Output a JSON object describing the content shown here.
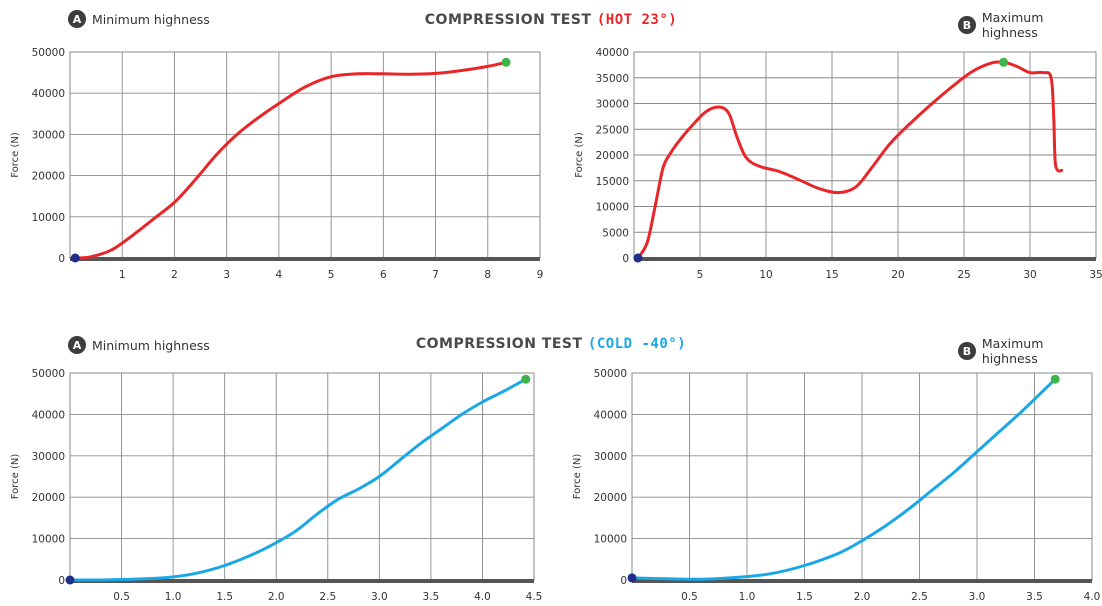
{
  "rows": [
    {
      "title_prefix": "COMPRESSION TEST",
      "title_highlight": "(HOT 23°)",
      "highlight_color": "#e8262a"
    },
    {
      "title_prefix": "COMPRESSION TEST",
      "title_highlight": "(COLD -40°)",
      "highlight_color": "#1aa7e6"
    }
  ],
  "badges": [
    {
      "letter": "A",
      "text": "Minimum highness"
    },
    {
      "letter": "B",
      "text": "Maximum highness"
    },
    {
      "letter": "A",
      "text": "Minimum highness"
    },
    {
      "letter": "B",
      "text": "Maximum highness"
    }
  ],
  "colors": {
    "start_marker": "#1f2e8a",
    "end_marker": "#3cb54a",
    "grid": "#8a8a8a",
    "axis": "#555555"
  },
  "chart_data": [
    {
      "type": "line",
      "color": "#e8262a",
      "ylabel": "Force (N)",
      "xlim": [
        0,
        9
      ],
      "ylim": [
        0,
        50000
      ],
      "xticks": [
        1,
        2,
        3,
        4,
        5,
        6,
        7,
        8,
        9
      ],
      "xtick_labels": [
        "1",
        "2",
        "3",
        "4",
        "5",
        "6",
        "7",
        "8",
        "9"
      ],
      "yticks": [
        0,
        10000,
        20000,
        30000,
        40000,
        50000
      ],
      "ytick_labels": [
        "0",
        "10000",
        "20000",
        "30000",
        "40000",
        "50000"
      ],
      "grid": true,
      "x": [
        0.1,
        0.4,
        0.8,
        1.2,
        1.6,
        2.0,
        2.4,
        2.8,
        3.2,
        3.6,
        4.0,
        4.5,
        5.0,
        5.5,
        6.0,
        6.5,
        7.0,
        7.5,
        8.0,
        8.35
      ],
      "y": [
        0,
        300,
        2000,
        5500,
        9500,
        13500,
        19000,
        25000,
        30000,
        34000,
        37500,
        41500,
        44000,
        44700,
        44700,
        44600,
        44800,
        45500,
        46500,
        47500
      ]
    },
    {
      "type": "line",
      "color": "#e8262a",
      "ylabel": "Force (N)",
      "xlim": [
        0,
        35
      ],
      "ylim": [
        0,
        40000
      ],
      "xticks": [
        5,
        10,
        15,
        20,
        25,
        30,
        35
      ],
      "xtick_labels": [
        "5",
        "10",
        "15",
        "20",
        "25",
        "30",
        "35"
      ],
      "yticks": [
        0,
        5000,
        10000,
        15000,
        20000,
        25000,
        30000,
        35000,
        40000
      ],
      "ytick_labels": [
        "0",
        "5000",
        "10000",
        "15000",
        "20000",
        "25000",
        "30000",
        "35000",
        "40000"
      ],
      "grid": true,
      "x": [
        0.3,
        1.0,
        1.6,
        2.2,
        2.8,
        3.5,
        4.5,
        5.5,
        6.5,
        7.2,
        7.8,
        8.5,
        9.5,
        11.0,
        12.5,
        14.0,
        15.5,
        16.8,
        18.0,
        19.5,
        21.5,
        23.5,
        25.5,
        27.0,
        28.0,
        29.0,
        30.0,
        31.0,
        31.6,
        31.8,
        31.9,
        32.1,
        32.4
      ],
      "y": [
        0,
        3000,
        10000,
        17500,
        20500,
        23000,
        26000,
        28500,
        29300,
        28000,
        23500,
        19500,
        17800,
        16800,
        15200,
        13500,
        12700,
        13800,
        17500,
        22500,
        27500,
        32000,
        36000,
        37800,
        38000,
        37200,
        36000,
        36000,
        35000,
        27000,
        19000,
        17000,
        17000
      ]
    },
    {
      "type": "line",
      "color": "#1aa7e6",
      "ylabel": "Force (N)",
      "xlim": [
        0,
        4.5
      ],
      "ylim": [
        0,
        50000
      ],
      "xticks": [
        0.5,
        1.0,
        1.5,
        2.0,
        2.5,
        3.0,
        3.5,
        4.0,
        4.5
      ],
      "xtick_labels": [
        "0.5",
        "1.0",
        "1.5",
        "2.0",
        "2.5",
        "3.0",
        "3.5",
        "4.0",
        "4.5"
      ],
      "yticks": [
        0,
        10000,
        20000,
        30000,
        40000,
        50000
      ],
      "ytick_labels": [
        "0",
        "10000",
        "20000",
        "30000",
        "40000",
        "50000"
      ],
      "grid": true,
      "x": [
        0.0,
        0.3,
        0.6,
        0.9,
        1.2,
        1.5,
        1.8,
        2.0,
        2.2,
        2.4,
        2.6,
        2.8,
        3.0,
        3.2,
        3.4,
        3.6,
        3.8,
        4.0,
        4.2,
        4.42
      ],
      "y": [
        0,
        0,
        200,
        500,
        1500,
        3500,
        6500,
        9000,
        12000,
        16000,
        19500,
        22000,
        25000,
        29000,
        33000,
        36500,
        40000,
        43000,
        45500,
        48500
      ]
    },
    {
      "type": "line",
      "color": "#1aa7e6",
      "ylabel": "Force (N)",
      "xlim": [
        0,
        4.0
      ],
      "ylim": [
        0,
        50000
      ],
      "xticks": [
        0.5,
        1.0,
        1.5,
        2.0,
        2.5,
        3.0,
        3.5,
        4.0
      ],
      "xtick_labels": [
        "0.5",
        "1.0",
        "1.5",
        "2.0",
        "2.5",
        "3.0",
        "3.5",
        "4.0"
      ],
      "yticks": [
        0,
        10000,
        20000,
        30000,
        40000,
        50000
      ],
      "ytick_labels": [
        "0",
        "10000",
        "20000",
        "30000",
        "40000",
        "50000"
      ],
      "grid": true,
      "x": [
        0.0,
        0.3,
        0.6,
        0.9,
        1.2,
        1.5,
        1.8,
        2.0,
        2.2,
        2.4,
        2.6,
        2.8,
        3.0,
        3.2,
        3.4,
        3.68
      ],
      "y": [
        500,
        300,
        200,
        600,
        1500,
        3500,
        6500,
        9500,
        13000,
        17000,
        21500,
        26000,
        31000,
        36000,
        41000,
        48500
      ]
    }
  ]
}
